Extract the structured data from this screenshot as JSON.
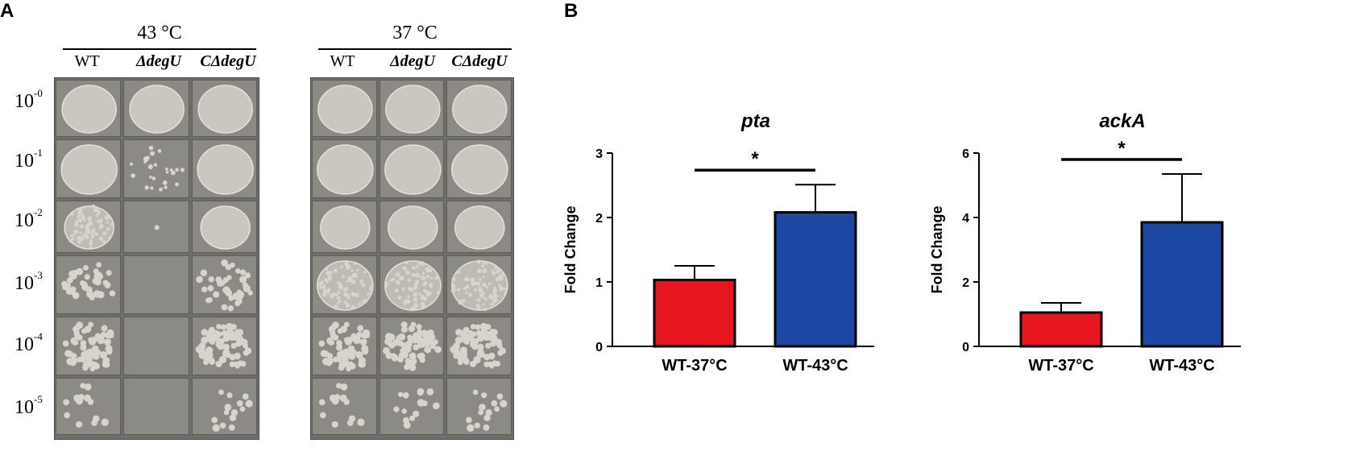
{
  "panel_a": {
    "letter": "A",
    "groups": [
      {
        "temperature": "43 °C",
        "strains": [
          "WT",
          "ΔdegU",
          "CΔdegU"
        ]
      },
      {
        "temperature": "37 °C",
        "strains": [
          "WT",
          "ΔdegU",
          "CΔdegU"
        ]
      }
    ],
    "dilutions": [
      {
        "base": "10",
        "exp": "-0"
      },
      {
        "base": "10",
        "exp": "-1"
      },
      {
        "base": "10",
        "exp": "-2"
      },
      {
        "base": "10",
        "exp": "-3"
      },
      {
        "base": "10",
        "exp": "-4"
      },
      {
        "base": "10",
        "exp": "-5"
      }
    ],
    "growth_43": [
      [
        "lawn",
        "lawn",
        "lawn"
      ],
      [
        "lawn",
        "sparse",
        "lawn"
      ],
      [
        "lawn-colonies",
        "single",
        "lawn"
      ],
      [
        "colonies",
        "none",
        "colonies"
      ],
      [
        "colonies-many",
        "none",
        "colonies-many"
      ],
      [
        "few",
        "none",
        "few"
      ]
    ],
    "growth_37": [
      [
        "lawn",
        "lawn",
        "lawn"
      ],
      [
        "lawn",
        "lawn",
        "lawn"
      ],
      [
        "lawn",
        "lawn",
        "lawn"
      ],
      [
        "lawn-colonies",
        "lawn-colonies",
        "lawn-colonies"
      ],
      [
        "colonies-many",
        "colonies-many",
        "colonies-many"
      ],
      [
        "few",
        "few",
        "few"
      ]
    ],
    "colors": {
      "plate": "#6f6e6a",
      "cell": "#8b8a85",
      "growth": "#d6d4cd"
    }
  },
  "panel_b": {
    "letter": "B",
    "chart_data": [
      {
        "type": "bar",
        "title": "pta",
        "ylabel": "Fold Change",
        "categories": [
          "WT-37°C",
          "WT-43°C"
        ],
        "values": [
          1.03,
          2.08
        ],
        "errors": [
          0.22,
          0.43
        ],
        "colors": [
          "#e8161e",
          "#1c48a3"
        ],
        "ylim": [
          0,
          3
        ],
        "yticks": [
          "0",
          "1",
          "2",
          "3"
        ],
        "significance": "*"
      },
      {
        "type": "bar",
        "title": "ackA",
        "ylabel": "Fold Change",
        "categories": [
          "WT-37°C",
          "WT-43°C"
        ],
        "values": [
          1.05,
          3.85
        ],
        "errors": [
          0.3,
          1.5
        ],
        "colors": [
          "#e8161e",
          "#1c48a3"
        ],
        "ylim": [
          0,
          6
        ],
        "yticks": [
          "0",
          "2",
          "4",
          "6"
        ],
        "significance": "*"
      }
    ]
  }
}
